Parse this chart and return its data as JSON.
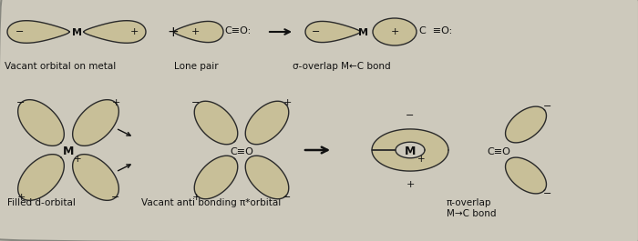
{
  "bg_color": "#cdc9bc",
  "orbital_fill_light": "#c8bf98",
  "orbital_fill_dark": "#b8ae80",
  "orbital_edge": "#2a2a2a",
  "text_color": "#111111",
  "top_row": {
    "vacant_orbital_label": "Vacant orbital on metal",
    "lone_pair_label": "Lone pair",
    "sigma_label": "σ-overlap M←C bond"
  },
  "bottom_row": {
    "filled_label": "Filled d-orbital",
    "vacant_ab_label": "Vacant anti bonding π*orbital",
    "pi_label": "π-overlap\nM→C bond"
  }
}
